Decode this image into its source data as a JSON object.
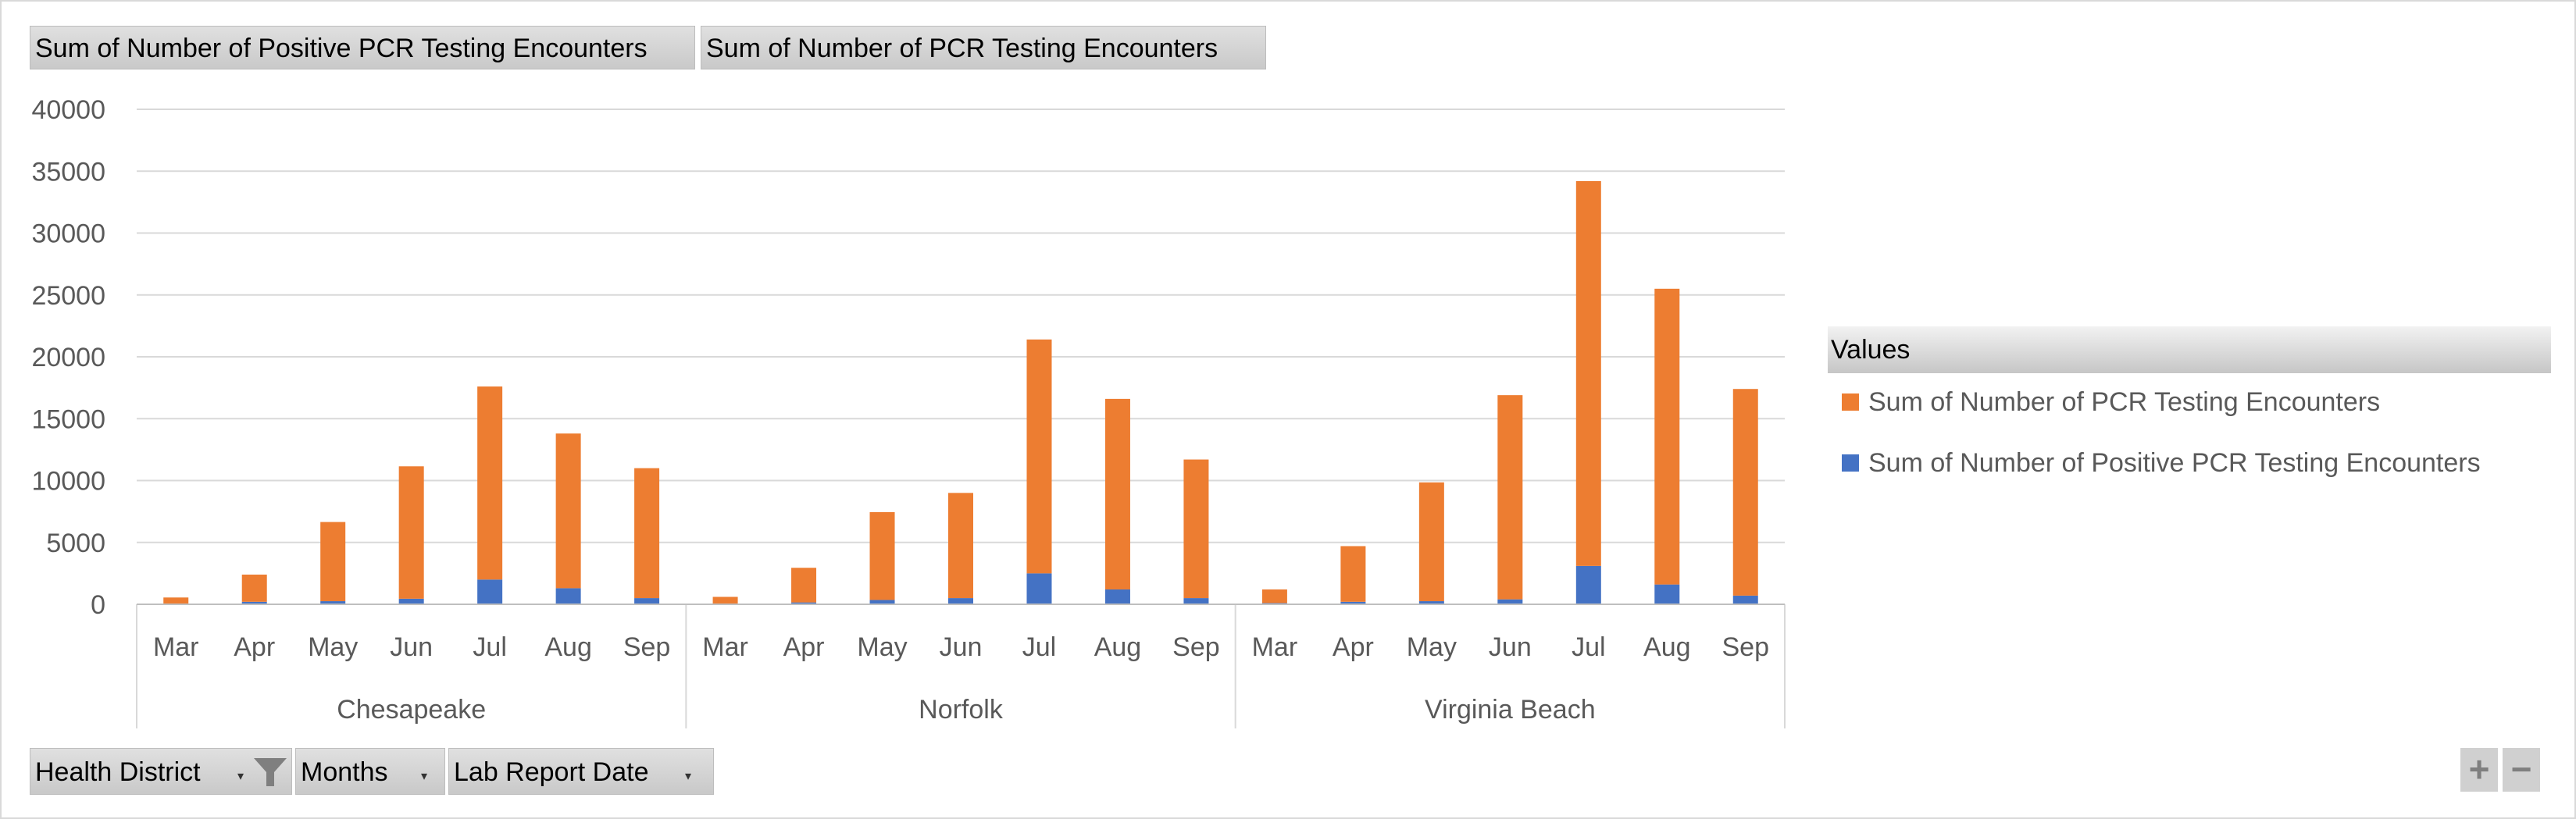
{
  "top_fields": {
    "positive_label": "Sum of Number of Positive PCR Testing Encounters",
    "total_label": "Sum of Number of PCR Testing Encounters"
  },
  "bottom_fields": {
    "health_district": "Health District",
    "months": "Months",
    "lab_report_date": "Lab Report Date"
  },
  "legend": {
    "header": "Values",
    "items": [
      {
        "label": "Sum of Number of PCR Testing Encounters",
        "color": "#ed7d31"
      },
      {
        "label": "Sum of Number of Positive PCR Testing Encounters",
        "color": "#4472c4"
      }
    ]
  },
  "zoom": {
    "plus": "+",
    "minus": "−"
  },
  "chart_data": {
    "type": "bar",
    "stacked": true,
    "ylim": [
      0,
      40000
    ],
    "yticks": [
      0,
      5000,
      10000,
      15000,
      20000,
      25000,
      30000,
      35000,
      40000
    ],
    "groups": [
      "Chesapeake",
      "Norfolk",
      "Virginia Beach"
    ],
    "categories": [
      "Mar",
      "Apr",
      "May",
      "Jun",
      "Jul",
      "Aug",
      "Sep"
    ],
    "grid": true,
    "legend_position": "right",
    "series": [
      {
        "name": "Sum of Number of Positive PCR Testing Encounters",
        "color": "#4472c4",
        "values": [
          [
            50,
            200,
            250,
            450,
            2000,
            1300,
            500
          ],
          [
            50,
            150,
            350,
            500,
            2500,
            1200,
            500
          ],
          [
            100,
            200,
            250,
            400,
            3100,
            1600,
            700
          ]
        ]
      },
      {
        "name": "Sum of Number of PCR Testing Encounters",
        "color": "#ed7d31",
        "values": [
          [
            500,
            2200,
            6400,
            10700,
            15600,
            12500,
            10500
          ],
          [
            550,
            2800,
            7100,
            8500,
            18900,
            15400,
            11200
          ],
          [
            1100,
            4500,
            9600,
            16500,
            31100,
            23900,
            16700
          ]
        ]
      }
    ]
  }
}
